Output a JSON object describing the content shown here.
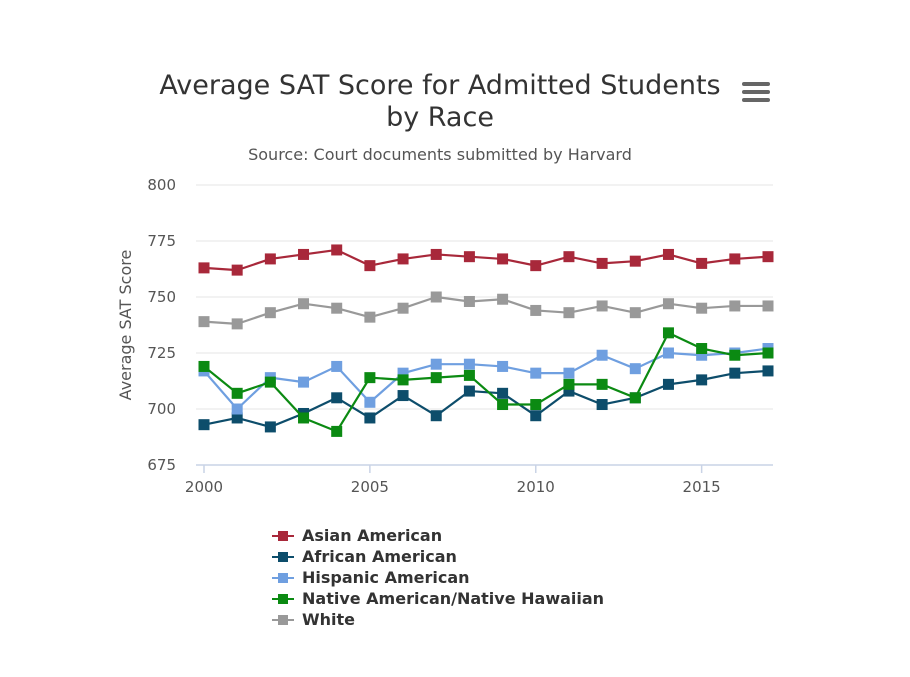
{
  "header": {
    "title": "Average SAT Score for Admitted Students by Race",
    "subtitle": "Source: Court documents submitted by Harvard",
    "menu_icon": "hamburger-menu-icon"
  },
  "chart_data": {
    "type": "line",
    "title": "Average SAT Score for Admitted Students by Race",
    "subtitle": "Source: Court documents submitted by Harvard",
    "xlabel": "",
    "ylabel": "Average SAT Score",
    "xlim": [
      2000,
      2017
    ],
    "ylim": [
      675,
      800
    ],
    "x_ticks": [
      2000,
      2005,
      2010,
      2015
    ],
    "y_ticks": [
      675,
      700,
      725,
      750,
      775,
      800
    ],
    "grid": "horizontal",
    "legend_position": "bottom",
    "x": [
      2000,
      2001,
      2002,
      2003,
      2004,
      2005,
      2006,
      2007,
      2008,
      2009,
      2010,
      2011,
      2012,
      2013,
      2014,
      2015,
      2016,
      2017
    ],
    "series": [
      {
        "name": "Asian American",
        "color": "#a8283a",
        "values": [
          763,
          762,
          767,
          769,
          771,
          764,
          767,
          769,
          768,
          767,
          764,
          768,
          765,
          766,
          769,
          765,
          767,
          768
        ]
      },
      {
        "name": "African American",
        "color": "#0d4d6b",
        "values": [
          693,
          696,
          692,
          698,
          705,
          696,
          706,
          697,
          708,
          707,
          697,
          708,
          702,
          705,
          711,
          713,
          716,
          717
        ]
      },
      {
        "name": "Hispanic American",
        "color": "#6f9fe0",
        "values": [
          717,
          700,
          714,
          712,
          719,
          703,
          716,
          720,
          720,
          719,
          716,
          716,
          724,
          718,
          725,
          724,
          725,
          727
        ]
      },
      {
        "name": "Native American/Native Hawaiian",
        "color": "#0b8a12",
        "values": [
          719,
          707,
          712,
          696,
          690,
          714,
          713,
          714,
          715,
          702,
          702,
          711,
          711,
          705,
          734,
          727,
          724,
          725
        ]
      },
      {
        "name": "White",
        "color": "#999999",
        "values": [
          739,
          738,
          743,
          747,
          745,
          741,
          745,
          750,
          748,
          749,
          744,
          743,
          746,
          743,
          747,
          745,
          746,
          746
        ]
      }
    ]
  }
}
